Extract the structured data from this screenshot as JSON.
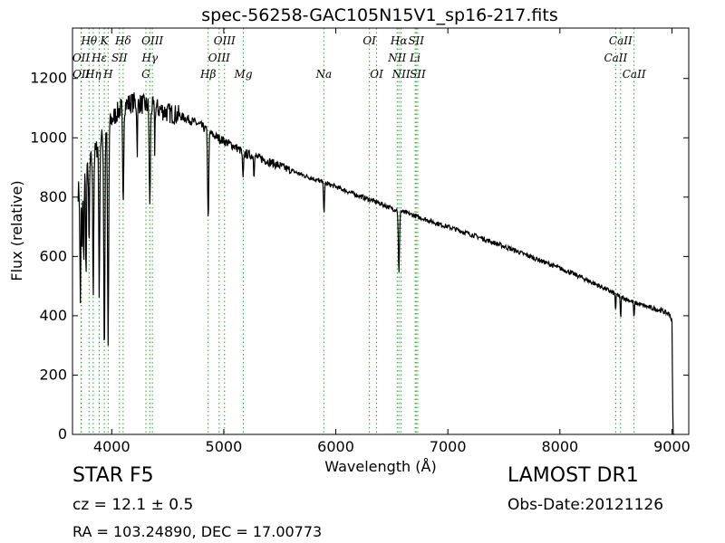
{
  "chart_data": {
    "type": "line",
    "title": "spec-56258-GAC105N15V1_sp16-217.fits",
    "xlabel": "Wavelength (Å)",
    "ylabel": "Flux (relative)",
    "xlim": [
      3650,
      9150
    ],
    "ylim": [
      0,
      1370
    ],
    "xticks": [
      4000,
      5000,
      6000,
      7000,
      8000,
      9000
    ],
    "yticks": [
      0,
      200,
      400,
      600,
      800,
      1000,
      1200
    ],
    "line_color": "#000000",
    "marker_color": "#2ca02c",
    "grid": false,
    "continuum": [
      [
        3700,
        820
      ],
      [
        3800,
        910
      ],
      [
        3900,
        990
      ],
      [
        4000,
        1060
      ],
      [
        4100,
        1110
      ],
      [
        4200,
        1120
      ],
      [
        4300,
        1110
      ],
      [
        4400,
        1100
      ],
      [
        4500,
        1085
      ],
      [
        4600,
        1075
      ],
      [
        4700,
        1060
      ],
      [
        4800,
        1040
      ],
      [
        4900,
        1010
      ],
      [
        5000,
        990
      ],
      [
        5100,
        970
      ],
      [
        5200,
        945
      ],
      [
        5300,
        935
      ],
      [
        5400,
        920
      ],
      [
        5500,
        905
      ],
      [
        5600,
        890
      ],
      [
        5700,
        875
      ],
      [
        5800,
        862
      ],
      [
        5900,
        848
      ],
      [
        6000,
        835
      ],
      [
        6100,
        820
      ],
      [
        6200,
        805
      ],
      [
        6300,
        792
      ],
      [
        6400,
        778
      ],
      [
        6500,
        762
      ],
      [
        6600,
        750
      ],
      [
        6700,
        738
      ],
      [
        6800,
        725
      ],
      [
        6900,
        712
      ],
      [
        7000,
        700
      ],
      [
        7100,
        688
      ],
      [
        7200,
        675
      ],
      [
        7300,
        662
      ],
      [
        7400,
        648
      ],
      [
        7500,
        634
      ],
      [
        7600,
        620
      ],
      [
        7700,
        605
      ],
      [
        7800,
        590
      ],
      [
        7900,
        575
      ],
      [
        8000,
        560
      ],
      [
        8100,
        545
      ],
      [
        8200,
        528
      ],
      [
        8300,
        510
      ],
      [
        8400,
        492
      ],
      [
        8500,
        472
      ],
      [
        8600,
        455
      ],
      [
        8700,
        440
      ],
      [
        8800,
        428
      ],
      [
        8900,
        418
      ],
      [
        8980,
        405
      ],
      [
        9000,
        380
      ],
      [
        9010,
        0
      ]
    ],
    "absorption": [
      [
        3720,
        440,
        12
      ],
      [
        3735,
        620,
        10
      ],
      [
        3750,
        560,
        10
      ],
      [
        3771,
        520,
        10
      ],
      [
        3798,
        600,
        10
      ],
      [
        3835,
        480,
        12
      ],
      [
        3889,
        470,
        12
      ],
      [
        3934,
        270,
        14
      ],
      [
        3968,
        290,
        14
      ],
      [
        4102,
        780,
        14
      ],
      [
        4227,
        960,
        10
      ],
      [
        4340,
        760,
        14
      ],
      [
        4384,
        960,
        8
      ],
      [
        4861,
        720,
        14
      ],
      [
        5172,
        860,
        14
      ],
      [
        5270,
        870,
        8
      ],
      [
        5895,
        750,
        12
      ],
      [
        6495,
        760,
        8
      ],
      [
        6563,
        540,
        14
      ],
      [
        8498,
        410,
        8
      ],
      [
        8542,
        390,
        10
      ],
      [
        8662,
        390,
        10
      ]
    ],
    "lines": [
      {
        "label": "Hθ",
        "wl": 3798,
        "row": 0
      },
      {
        "label": "K",
        "wl": 3934,
        "row": 0
      },
      {
        "label": "Hδ",
        "wl": 4102,
        "row": 0
      },
      {
        "label": "OIII",
        "wl": 4363,
        "row": 0
      },
      {
        "label": "OIII",
        "wl": 5007,
        "row": 0
      },
      {
        "label": "OI",
        "wl": 6300,
        "row": 0
      },
      {
        "label": "Hα",
        "wl": 6563,
        "row": 0
      },
      {
        "label": "SII",
        "wl": 6717,
        "row": 0
      },
      {
        "label": "CaII",
        "wl": 8542,
        "row": 0
      },
      {
        "label": "OII",
        "wl": 3727,
        "row": 1
      },
      {
        "label": "Hε",
        "wl": 3889,
        "row": 1
      },
      {
        "label": "SII",
        "wl": 4069,
        "row": 1
      },
      {
        "label": "Hγ",
        "wl": 4340,
        "row": 1
      },
      {
        "label": "OIII",
        "wl": 4959,
        "row": 1
      },
      {
        "label": "NII",
        "wl": 6548,
        "row": 1
      },
      {
        "label": "Li",
        "wl": 6708,
        "row": 1
      },
      {
        "label": "CaII",
        "wl": 8498,
        "row": 1
      },
      {
        "label": "OII",
        "wl": 3729,
        "row": 2
      },
      {
        "label": "Hη",
        "wl": 3835,
        "row": 2
      },
      {
        "label": "H",
        "wl": 3968,
        "row": 2
      },
      {
        "label": "G",
        "wl": 4305,
        "row": 2
      },
      {
        "label": "Hβ",
        "wl": 4861,
        "row": 2
      },
      {
        "label": "Mg",
        "wl": 5175,
        "row": 2
      },
      {
        "label": "Na",
        "wl": 5893,
        "row": 2
      },
      {
        "label": "OI",
        "wl": 6364,
        "row": 2
      },
      {
        "label": "NII",
        "wl": 6583,
        "row": 2
      },
      {
        "label": "SII",
        "wl": 6731,
        "row": 2
      },
      {
        "label": "CaII",
        "wl": 8662,
        "row": 2
      }
    ]
  },
  "info": {
    "class": "STAR   F5",
    "survey": "LAMOST DR1",
    "redshift": "cz = 12.1 ± 0.5",
    "obs_date": "Obs-Date:20121126",
    "coords": "RA = 103.24890, DEC = 17.00773"
  }
}
